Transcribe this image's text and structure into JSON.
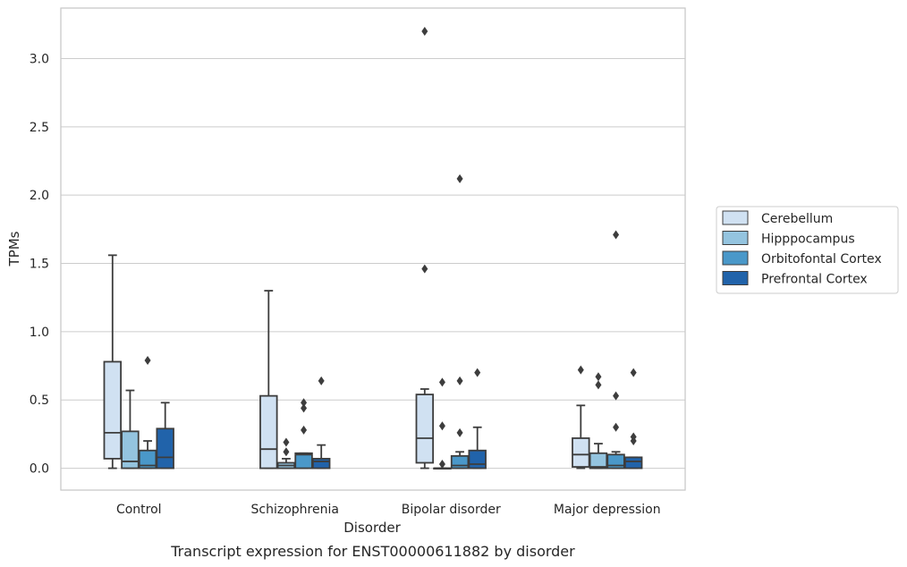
{
  "caption": "Transcript expression for ENST00000611882 by disorder",
  "chart_data": {
    "type": "box",
    "xlabel": "Disorder",
    "ylabel": "TPMs",
    "ylim": [
      -0.16,
      3.37
    ],
    "yticks": [
      "0.0",
      "0.5",
      "1.0",
      "1.5",
      "2.0",
      "2.5",
      "3.0"
    ],
    "categories": [
      "Control",
      "Schizophrenia",
      "Bipolar disorder",
      "Major depression"
    ],
    "grid": "horizontal",
    "legend_position": "right",
    "series": [
      {
        "name": "Cerebellum",
        "color": "#d0e1f2",
        "boxes": [
          {
            "q1": 0.07,
            "median": 0.26,
            "q3": 0.78,
            "whisker_low": 0.0,
            "whisker_high": 1.56,
            "outliers": []
          },
          {
            "q1": 0.0,
            "median": 0.14,
            "q3": 0.53,
            "whisker_low": 0.0,
            "whisker_high": 1.3,
            "outliers": []
          },
          {
            "q1": 0.04,
            "median": 0.22,
            "q3": 0.54,
            "whisker_low": 0.0,
            "whisker_high": 0.58,
            "outliers": [
              1.46,
              3.2
            ]
          },
          {
            "q1": 0.01,
            "median": 0.1,
            "q3": 0.22,
            "whisker_low": 0.0,
            "whisker_high": 0.46,
            "outliers": [
              0.72
            ]
          }
        ]
      },
      {
        "name": "Hipppocampus",
        "color": "#94c4df",
        "boxes": [
          {
            "q1": 0.0,
            "median": 0.05,
            "q3": 0.27,
            "whisker_low": 0.0,
            "whisker_high": 0.57,
            "outliers": []
          },
          {
            "q1": 0.0,
            "median": 0.02,
            "q3": 0.04,
            "whisker_low": 0.0,
            "whisker_high": 0.07,
            "outliers": [
              0.12,
              0.19
            ]
          },
          {
            "q1": 0.0,
            "median": 0.0,
            "q3": 0.0,
            "whisker_low": 0.0,
            "whisker_high": 0.0,
            "outliers": [
              0.03,
              0.31,
              0.63
            ]
          },
          {
            "q1": 0.0,
            "median": 0.01,
            "q3": 0.11,
            "whisker_low": 0.0,
            "whisker_high": 0.18,
            "outliers": [
              0.61,
              0.67
            ]
          }
        ]
      },
      {
        "name": "Orbitofontal Cortex",
        "color": "#4a98c9",
        "boxes": [
          {
            "q1": 0.0,
            "median": 0.02,
            "q3": 0.13,
            "whisker_low": 0.0,
            "whisker_high": 0.2,
            "outliers": [
              0.79
            ]
          },
          {
            "q1": 0.0,
            "median": 0.1,
            "q3": 0.11,
            "whisker_low": 0.0,
            "whisker_high": 0.11,
            "outliers": [
              0.28,
              0.44,
              0.48
            ]
          },
          {
            "q1": 0.0,
            "median": 0.02,
            "q3": 0.09,
            "whisker_low": 0.0,
            "whisker_high": 0.12,
            "outliers": [
              0.26,
              0.64,
              2.12
            ]
          },
          {
            "q1": 0.0,
            "median": 0.02,
            "q3": 0.1,
            "whisker_low": 0.0,
            "whisker_high": 0.12,
            "outliers": [
              0.3,
              0.53,
              1.71
            ]
          }
        ]
      },
      {
        "name": "Prefrontal Cortex",
        "color": "#2163aa",
        "boxes": [
          {
            "q1": 0.0,
            "median": 0.08,
            "q3": 0.29,
            "whisker_low": 0.0,
            "whisker_high": 0.48,
            "outliers": []
          },
          {
            "q1": 0.0,
            "median": 0.05,
            "q3": 0.07,
            "whisker_low": 0.0,
            "whisker_high": 0.17,
            "outliers": [
              0.64
            ]
          },
          {
            "q1": 0.0,
            "median": 0.03,
            "q3": 0.13,
            "whisker_low": 0.0,
            "whisker_high": 0.3,
            "outliers": [
              0.7
            ]
          },
          {
            "q1": 0.0,
            "median": 0.05,
            "q3": 0.08,
            "whisker_low": 0.0,
            "whisker_high": 0.08,
            "outliers": [
              0.2,
              0.23,
              0.7
            ]
          }
        ]
      }
    ],
    "style": {
      "edge_color": "#3d3d3d",
      "grid_color": "#cccccc",
      "frame_color": "#c8c8c8"
    }
  }
}
